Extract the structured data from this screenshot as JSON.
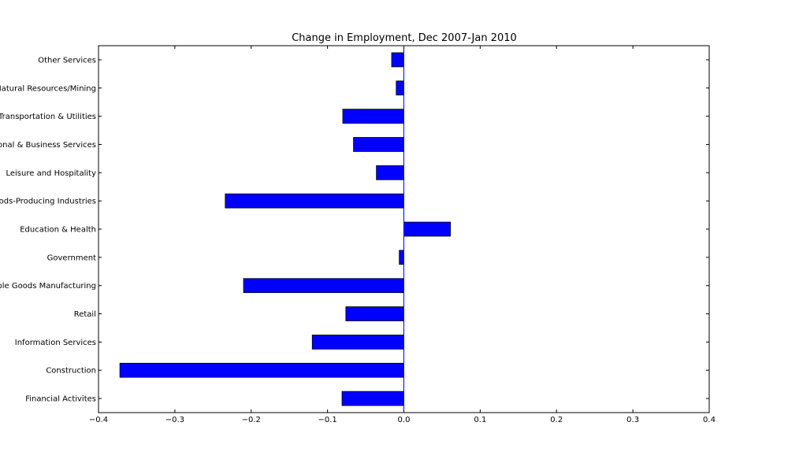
{
  "chart_data": {
    "type": "bar",
    "orientation": "horizontal",
    "title": "Change in Employment, Dec 2007-Jan 2010",
    "xlabel": "",
    "ylabel": "",
    "xlim": [
      -0.4,
      0.4
    ],
    "x_ticks": [
      -0.4,
      -0.3,
      -0.2,
      -0.1,
      0.0,
      0.1,
      0.2,
      0.3,
      0.4
    ],
    "x_tick_labels": [
      "−0.4",
      "−0.3",
      "−0.2",
      "−0.1",
      "0.0",
      "0.1",
      "0.2",
      "0.3",
      "0.4"
    ],
    "categories": [
      "Financial Activites",
      "Construction",
      "Information Services",
      "Retail",
      "Durable Goods Manufacturing",
      "Government",
      "Education & Health",
      "Goods-Producing Industries",
      "Leisure and Hospitality",
      "Professional & Business Services",
      "Trade, Transportation & Utilities",
      "Natural Resources/Mining",
      "Other Services"
    ],
    "values": [
      -0.081,
      -0.372,
      -0.12,
      -0.076,
      -0.21,
      -0.006,
      0.061,
      -0.234,
      -0.036,
      -0.066,
      -0.08,
      -0.01,
      -0.016
    ],
    "grid": false,
    "zero_line": true,
    "colors": {
      "bar_fill": "#0000ff",
      "bar_edge": "#000000",
      "zero_line": "#0000ff",
      "axes": "#000000"
    }
  }
}
